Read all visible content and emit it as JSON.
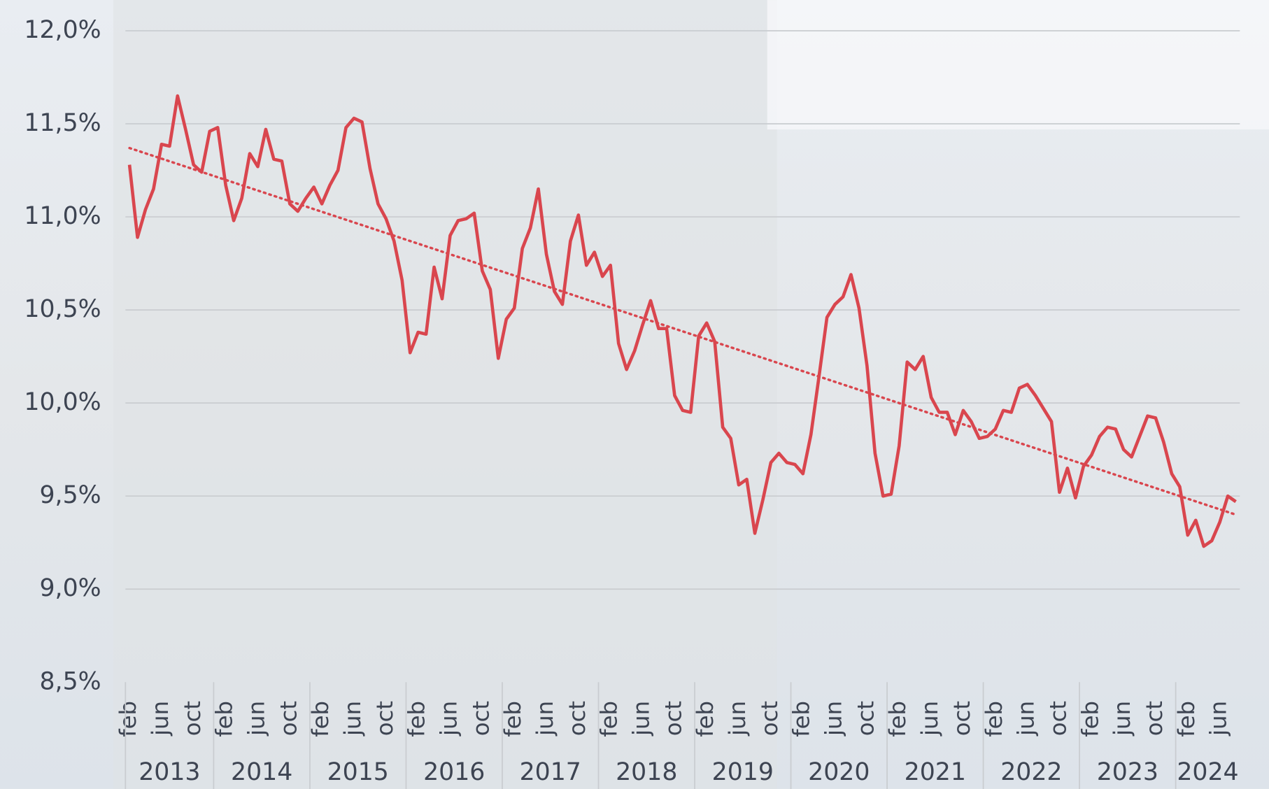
{
  "chart_data": {
    "type": "line",
    "categories": [
      "feb",
      null,
      null,
      null,
      "jun",
      null,
      null,
      null,
      "oct",
      null,
      null,
      null,
      "feb",
      null,
      null,
      null,
      "jun",
      null,
      null,
      null,
      "oct",
      null,
      null,
      null,
      "feb",
      null,
      null,
      null,
      "jun",
      null,
      null,
      null,
      "oct",
      null,
      null,
      null,
      "feb",
      null,
      null,
      null,
      "jun",
      null,
      null,
      null,
      "oct",
      null,
      null,
      null,
      "feb",
      null,
      null,
      null,
      "jun",
      null,
      null,
      null,
      "oct",
      null,
      null,
      null,
      "feb",
      null,
      null,
      null,
      "jun",
      null,
      null,
      null,
      "oct",
      null,
      null,
      null,
      "feb",
      null,
      null,
      null,
      "jun",
      null,
      null,
      null,
      "oct",
      null,
      null,
      null,
      "feb",
      null,
      null,
      null,
      "jun",
      null,
      null,
      null,
      "oct",
      null,
      null,
      null,
      "feb",
      null,
      null,
      null,
      "jun",
      null,
      null,
      null,
      "oct",
      null,
      null,
      null,
      "feb",
      null,
      null,
      null,
      "jun",
      null,
      null,
      null,
      "oct",
      null,
      null,
      null,
      "feb",
      null,
      null,
      null,
      "jun",
      null,
      null,
      null,
      "oct",
      null,
      null,
      null,
      "feb",
      null,
      null,
      null,
      "jun",
      null,
      null
    ],
    "years": [
      "2013",
      "2014",
      "2015",
      "2016",
      "2017",
      "2018",
      "2019",
      "2020",
      "2021",
      "2022",
      "2023",
      "2024"
    ],
    "series": [
      {
        "color": "#d9464e",
        "values": [
          11.28,
          10.89,
          11.04,
          11.15,
          11.39,
          11.38,
          11.65,
          11.47,
          11.28,
          11.24,
          11.46,
          11.48,
          11.17,
          10.98,
          11.1,
          11.34,
          11.27,
          11.47,
          11.31,
          11.3,
          11.07,
          11.03,
          11.1,
          11.16,
          11.07,
          11.17,
          11.25,
          11.48,
          11.53,
          11.51,
          11.26,
          11.07,
          10.99,
          10.87,
          10.66,
          10.27,
          10.38,
          10.37,
          10.73,
          10.56,
          10.9,
          10.98,
          10.99,
          11.02,
          10.71,
          10.61,
          10.24,
          10.45,
          10.51,
          10.83,
          10.94,
          11.15,
          10.8,
          10.6,
          10.53,
          10.87,
          11.01,
          10.74,
          10.81,
          10.68,
          10.74,
          10.32,
          10.18,
          10.28,
          10.42,
          10.55,
          10.4,
          10.4,
          10.04,
          9.96,
          9.95,
          10.36,
          10.43,
          10.33,
          9.87,
          9.81,
          9.56,
          9.59,
          9.3,
          9.48,
          9.68,
          9.73,
          9.68,
          9.67,
          9.62,
          9.83,
          10.14,
          10.46,
          10.53,
          10.57,
          10.69,
          10.51,
          10.2,
          9.73,
          9.5,
          9.51,
          9.77,
          10.22,
          10.18,
          10.25,
          10.03,
          9.95,
          9.95,
          9.83,
          9.96,
          9.9,
          9.81,
          9.82,
          9.86,
          9.96,
          9.95,
          10.08,
          10.1,
          10.04,
          9.97,
          9.9,
          9.52,
          9.65,
          9.49,
          9.66,
          9.72,
          9.82,
          9.87,
          9.86,
          9.75,
          9.71,
          9.82,
          9.93,
          9.92,
          9.79,
          9.62,
          9.55,
          9.29,
          9.37,
          9.23,
          9.26,
          9.36,
          9.5,
          9.47
        ]
      }
    ],
    "trendline": {
      "color": "#d9464e",
      "values": [
        11.37,
        9.4
      ]
    },
    "ylim": [
      8.5,
      12.0
    ],
    "yticks": [
      {
        "value": 8.5,
        "label": "8,5%"
      },
      {
        "value": 9.0,
        "label": "9,0%"
      },
      {
        "value": 9.5,
        "label": "9,5%"
      },
      {
        "value": 10.0,
        "label": "10,0%"
      },
      {
        "value": 10.5,
        "label": "10,5%"
      },
      {
        "value": 11.0,
        "label": "11,0%"
      },
      {
        "value": 11.5,
        "label": "11,5%"
      },
      {
        "value": 12.0,
        "label": "12,0%"
      }
    ],
    "grid": true
  }
}
